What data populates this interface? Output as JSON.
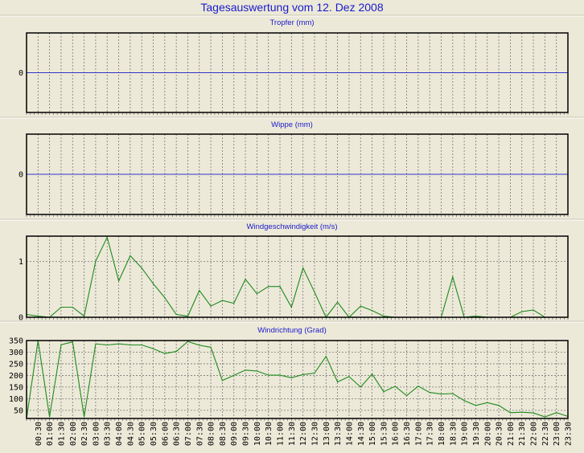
{
  "title": "Tagesauswertung vom 12. Dez 2008",
  "colors": {
    "background": "#ece9d8",
    "title": "#1a1acc",
    "zero_line": "#3333cc",
    "series": "#1e8a1e",
    "grid": "#777777"
  },
  "chart_data": [
    {
      "type": "line",
      "title": "Tropfer (mm)",
      "y_ticks": [
        "0"
      ],
      "ylim": [
        -1,
        1
      ],
      "values": [],
      "grid": true
    },
    {
      "type": "line",
      "title": "Wippe (mm)",
      "y_ticks": [
        "0"
      ],
      "ylim": [
        -1,
        1
      ],
      "values": [],
      "grid": true
    },
    {
      "type": "line",
      "title": "Windgeschwindigkeit (m/s)",
      "y_ticks": [
        "0",
        "1"
      ],
      "ylim": [
        0,
        1.45
      ],
      "grid": true,
      "values": [
        0.05,
        0.02,
        0,
        0.18,
        0.18,
        0.02,
        1.0,
        1.43,
        0.65,
        1.1,
        0.88,
        0.6,
        0.35,
        0.05,
        0.02,
        0.48,
        0.2,
        0.3,
        0.25,
        0.68,
        0.42,
        0.55,
        0.55,
        0.18,
        0.88,
        0.45,
        0,
        0.27,
        0,
        0.2,
        0.12,
        0.02,
        0,
        0,
        0,
        0,
        0,
        0.72,
        0,
        0.02,
        0,
        0,
        0,
        0.1,
        0.13,
        0,
        0,
        0
      ]
    },
    {
      "type": "line",
      "title": "Windrichtung (Grad)",
      "y_ticks": [
        "50",
        "100",
        "150",
        "200",
        "250",
        "300",
        "350"
      ],
      "ylim": [
        15,
        350
      ],
      "grid": true,
      "values": [
        15,
        350,
        22,
        332,
        344,
        22,
        336,
        331,
        336,
        331,
        331,
        315,
        294,
        303,
        346,
        330,
        321,
        178,
        200,
        223,
        219,
        201,
        201,
        190,
        204,
        210,
        282,
        172,
        195,
        150,
        206,
        130,
        153,
        113,
        154,
        127,
        120,
        122,
        92,
        71,
        83,
        71,
        40,
        42,
        39,
        22,
        40,
        24
      ]
    }
  ],
  "x_ticks": [
    "00:30",
    "01:00",
    "01:30",
    "02:00",
    "02:30",
    "03:00",
    "03:30",
    "04:00",
    "04:30",
    "05:00",
    "05:30",
    "06:00",
    "06:30",
    "07:00",
    "07:30",
    "08:00",
    "08:30",
    "09:00",
    "09:30",
    "10:00",
    "10:30",
    "11:00",
    "11:30",
    "12:00",
    "12:30",
    "13:00",
    "13:30",
    "14:00",
    "14:30",
    "15:00",
    "15:30",
    "16:00",
    "16:30",
    "17:00",
    "17:30",
    "18:00",
    "18:30",
    "19:00",
    "19:30",
    "20:00",
    "20:30",
    "21:00",
    "21:30",
    "22:00",
    "22:30",
    "23:00",
    "23:30"
  ]
}
